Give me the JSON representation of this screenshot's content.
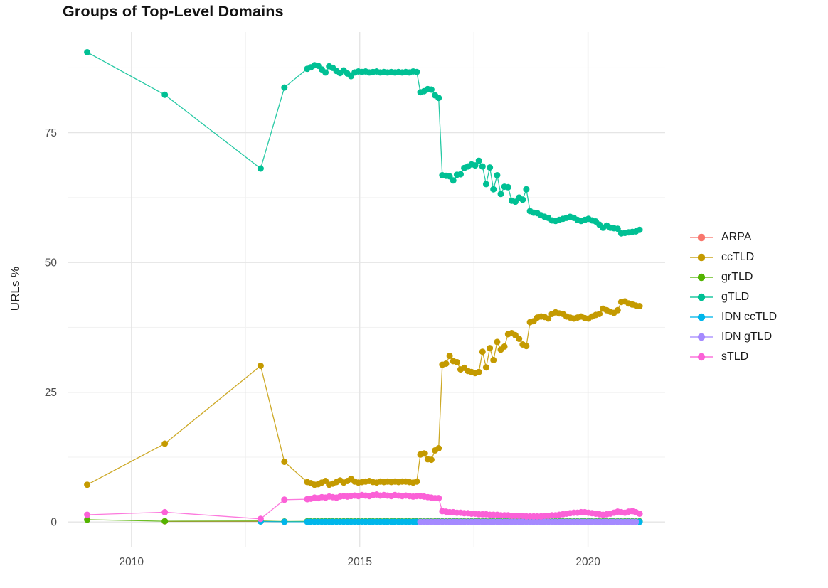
{
  "chart_data": {
    "type": "line",
    "title": "Groups of Top-Level Domains",
    "xlabel": "",
    "ylabel": "URLs %",
    "grid": true,
    "legend_position": "right",
    "x_domain": [
      2008.6,
      2021.69
    ],
    "y_domain": [
      -4.9,
      94.4
    ],
    "x_ticks": [
      2010,
      2015,
      2020
    ],
    "x_tick_labels": [
      "2010",
      "2015",
      "2020"
    ],
    "x_minor": [
      2012.5,
      2017.5
    ],
    "y_ticks": [
      0,
      25,
      50,
      75
    ],
    "y_tick_labels": [
      "0",
      "25",
      "50",
      "75"
    ],
    "y_minor": [
      12.5,
      37.5,
      62.5,
      87.5
    ],
    "colors": {
      "background": "#ffffff",
      "grid_major": "#e5e5e5",
      "grid_minor": "#f1f1f1",
      "axis_text": "#4d4d4d",
      "title_text": "#111111"
    },
    "series": [
      {
        "name": "ARPA",
        "color": "#F8766D",
        "pre": [
          [
            2010.73,
            0.12
          ],
          [
            2012.83,
            0.12
          ],
          [
            2013.35,
            0.05
          ]
        ]
      },
      {
        "name": "ccTLD",
        "color": "#C49A00",
        "pre": [
          [
            2009.03,
            7.2
          ],
          [
            2010.73,
            15.1
          ],
          [
            2012.83,
            30.1
          ],
          [
            2013.35,
            11.6
          ]
        ],
        "x0": 2013.85,
        "dx": 0.08,
        "values": [
          7.7,
          7.5,
          7.2,
          7.3,
          7.6,
          7.9,
          7.2,
          7.4,
          7.7,
          8.0,
          7.6,
          7.9,
          8.3,
          7.8,
          7.6,
          7.7,
          7.8,
          7.9,
          7.7,
          7.6,
          7.8,
          7.7,
          7.8,
          7.7,
          7.8,
          7.7,
          7.8,
          7.8,
          7.7,
          7.6,
          7.8,
          13.0,
          13.2,
          12.1,
          12.0,
          13.8,
          14.2,
          30.3,
          30.5,
          32.0,
          31.0,
          30.8,
          29.4,
          29.7,
          29.1,
          28.9,
          28.7,
          28.9,
          32.8,
          29.8,
          33.5,
          31.2,
          34.7,
          33.2,
          33.8,
          36.2,
          36.4,
          36.0,
          35.3,
          34.2,
          33.9,
          38.5,
          38.7,
          39.4,
          39.6,
          39.5,
          39.2,
          40.1,
          40.4,
          40.2,
          40.1,
          39.6,
          39.4,
          39.2,
          39.4,
          39.6,
          39.3,
          39.2,
          39.6,
          39.9,
          40.1,
          41.1,
          40.8,
          40.5,
          40.3,
          40.8,
          42.4,
          42.5,
          42.1,
          41.9,
          41.7,
          41.6
        ]
      },
      {
        "name": "grTLD",
        "color": "#53B400",
        "pre": [
          [
            2009.03,
            0.45
          ],
          [
            2010.73,
            0.15
          ],
          [
            2012.83,
            0.2
          ],
          [
            2013.35,
            0.1
          ]
        ],
        "x0": 2013.85,
        "dx": 0.08,
        "n": 92,
        "const": 0.13
      },
      {
        "name": "gTLD",
        "color": "#00C094",
        "pre": [
          [
            2009.03,
            90.5
          ],
          [
            2010.73,
            82.3
          ],
          [
            2012.83,
            68.1
          ],
          [
            2013.35,
            83.7
          ]
        ],
        "x0": 2013.85,
        "dx": 0.08,
        "values": [
          87.3,
          87.6,
          88.0,
          87.9,
          87.2,
          86.6,
          87.8,
          87.5,
          86.9,
          86.5,
          87.0,
          86.4,
          85.9,
          86.6,
          86.8,
          86.7,
          86.8,
          86.6,
          86.7,
          86.8,
          86.6,
          86.7,
          86.6,
          86.7,
          86.6,
          86.7,
          86.6,
          86.7,
          86.6,
          86.8,
          86.7,
          82.8,
          83.0,
          83.4,
          83.3,
          82.2,
          81.7,
          66.8,
          66.7,
          66.6,
          65.8,
          66.9,
          67.0,
          68.2,
          68.5,
          68.9,
          68.7,
          69.6,
          68.5,
          65.1,
          68.3,
          64.1,
          66.8,
          63.2,
          64.6,
          64.5,
          61.9,
          61.7,
          62.5,
          62.1,
          64.1,
          59.9,
          59.6,
          59.5,
          59.1,
          58.8,
          58.6,
          58.1,
          58.0,
          58.2,
          58.4,
          58.6,
          58.8,
          58.6,
          58.2,
          58.0,
          58.2,
          58.4,
          58.1,
          57.9,
          57.3,
          56.7,
          57.1,
          56.7,
          56.6,
          56.5,
          55.6,
          55.7,
          55.8,
          55.9,
          56.0,
          56.3
        ]
      },
      {
        "name": "IDN ccTLD",
        "color": "#00B6EB",
        "pre": [
          [
            2012.83,
            0.1
          ],
          [
            2013.35,
            0.05
          ]
        ],
        "x0": 2013.85,
        "dx": 0.08,
        "n": 92,
        "const": 0.05
      },
      {
        "name": "IDN gTLD",
        "color": "#A58AFF",
        "x0": 2016.33,
        "dx": 0.08,
        "n": 60,
        "const": 0.02
      },
      {
        "name": "sTLD",
        "color": "#FB61D7",
        "pre": [
          [
            2009.03,
            1.4
          ],
          [
            2010.73,
            1.9
          ],
          [
            2012.83,
            0.6
          ],
          [
            2013.35,
            4.3
          ]
        ],
        "x0": 2013.85,
        "dx": 0.08,
        "values": [
          4.4,
          4.5,
          4.7,
          4.6,
          4.8,
          4.7,
          4.9,
          4.8,
          4.7,
          4.9,
          5.0,
          4.9,
          5.0,
          5.1,
          5.0,
          5.2,
          5.1,
          5.0,
          5.2,
          5.3,
          5.1,
          5.2,
          5.1,
          5.0,
          5.2,
          5.1,
          5.0,
          5.1,
          5.0,
          4.9,
          5.0,
          5.0,
          4.9,
          4.8,
          4.7,
          4.6,
          4.6,
          2.1,
          2.0,
          1.9,
          1.9,
          1.8,
          1.8,
          1.7,
          1.7,
          1.6,
          1.6,
          1.5,
          1.5,
          1.5,
          1.4,
          1.4,
          1.4,
          1.3,
          1.3,
          1.3,
          1.2,
          1.2,
          1.2,
          1.2,
          1.1,
          1.1,
          1.1,
          1.1,
          1.1,
          1.2,
          1.2,
          1.3,
          1.3,
          1.4,
          1.5,
          1.6,
          1.7,
          1.8,
          1.8,
          1.9,
          1.9,
          1.8,
          1.7,
          1.6,
          1.5,
          1.4,
          1.5,
          1.6,
          1.8,
          2.0,
          1.9,
          1.8,
          2.0,
          2.1,
          1.9,
          1.6
        ]
      }
    ]
  }
}
